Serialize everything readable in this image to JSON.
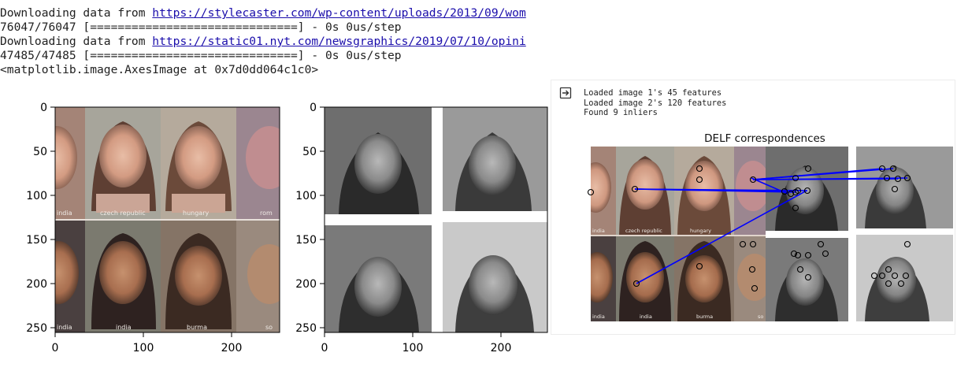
{
  "output": {
    "lines": [
      {
        "prefix": "Downloading data from ",
        "link": "https://stylecaster.com/wp-content/uploads/2013/09/wom"
      },
      {
        "text": "76047/76047 [==============================] - 0s 0us/step"
      },
      {
        "prefix": "Downloading data from ",
        "link": "https://static01.nyt.com/newsgraphics/2019/07/10/opini"
      },
      {
        "text": "47485/47485 [==============================] - 0s 0us/step"
      },
      {
        "text": "<matplotlib.image.AxesImage at 0x7d0dd064c1c0>"
      }
    ]
  },
  "plot1": {
    "y_ticks": [
      "0",
      "50",
      "100",
      "150",
      "200",
      "250"
    ],
    "x_ticks": [
      "0",
      "100",
      "200"
    ],
    "x_range": [
      0,
      283
    ],
    "y_range": [
      0,
      255
    ],
    "tile_labels": [
      "india",
      "czech republic",
      "hungary",
      "rom",
      "india",
      "india",
      "burma",
      "so"
    ]
  },
  "plot2": {
    "y_ticks": [
      "0",
      "50",
      "100",
      "150",
      "200",
      "250"
    ],
    "x_ticks": [
      "0",
      "100",
      "200"
    ],
    "x_range": [
      0,
      283
    ],
    "y_range": [
      0,
      255
    ]
  },
  "panel": {
    "icon": "output-arrow-icon",
    "lines": [
      "Loaded image 1's 45 features",
      "Loaded image 2's 120 features",
      "Found 9 inliers"
    ],
    "delf_title": "DELF correspondences",
    "tile_labels": [
      "india",
      "czech republic",
      "hungary",
      "india",
      "india",
      "burma",
      "so"
    ]
  },
  "colors": {
    "link": "#1a0dab",
    "match_line": "#0000ff",
    "keypoint": "#000000"
  }
}
